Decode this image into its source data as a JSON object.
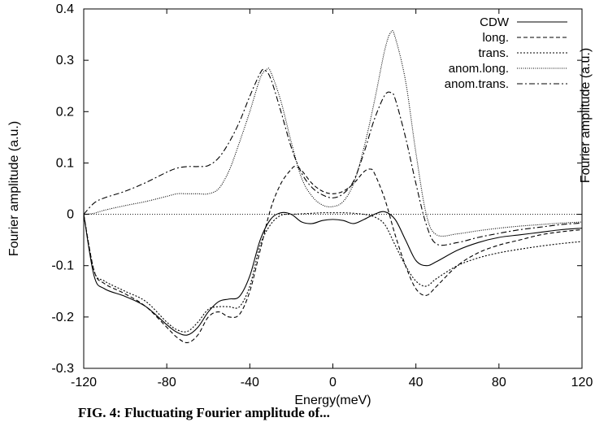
{
  "caption": "FIG. 4: Fluctuating Fourier amplitude of...",
  "chart_data": {
    "type": "line",
    "xlabel": "Energy(meV)",
    "ylabel": "Fourier amplitude (a.u.)",
    "ylabel_right": "Fourier amplitude (a.u.)",
    "xlim": [
      -120,
      120
    ],
    "ylim": [
      -0.3,
      0.4
    ],
    "xticks": [
      -120,
      -80,
      -40,
      0,
      40,
      80,
      120
    ],
    "yticks": [
      -0.3,
      -0.2,
      -0.1,
      0,
      0.1,
      0.2,
      0.3,
      0.4
    ],
    "xtick_labels": [
      "-120",
      "-80",
      "-40",
      "0",
      "40",
      "80",
      "120"
    ],
    "ytick_labels": [
      "-0.3",
      "-0.2",
      "-0.1",
      "0",
      "0.1",
      "0.2",
      "0.3",
      "0.4"
    ],
    "grid": false,
    "legend_position": "top-right",
    "series": [
      {
        "name": "CDW",
        "style": "solid",
        "x": [
          -120,
          -115,
          -110,
          -100,
          -90,
          -80,
          -75,
          -70,
          -65,
          -60,
          -55,
          -50,
          -45,
          -40,
          -35,
          -30,
          -25,
          -20,
          -15,
          -10,
          -5,
          0,
          5,
          10,
          15,
          20,
          25,
          30,
          35,
          40,
          45,
          50,
          60,
          70,
          80,
          90,
          100,
          110,
          120
        ],
        "y": [
          0.0,
          -0.12,
          -0.145,
          -0.16,
          -0.18,
          -0.215,
          -0.23,
          -0.235,
          -0.22,
          -0.19,
          -0.17,
          -0.165,
          -0.16,
          -0.12,
          -0.05,
          -0.01,
          0.003,
          0.0,
          -0.015,
          -0.018,
          -0.012,
          -0.01,
          -0.012,
          -0.018,
          -0.01,
          0.0,
          0.005,
          -0.01,
          -0.05,
          -0.09,
          -0.1,
          -0.092,
          -0.07,
          -0.055,
          -0.045,
          -0.04,
          -0.035,
          -0.03,
          -0.027
        ]
      },
      {
        "name": "long.",
        "style": "dashed",
        "x": [
          -120,
          -115,
          -110,
          -100,
          -90,
          -80,
          -75,
          -70,
          -65,
          -60,
          -55,
          -50,
          -45,
          -40,
          -35,
          -30,
          -25,
          -20,
          -18,
          -15,
          -10,
          -5,
          0,
          5,
          10,
          15,
          18,
          20,
          25,
          30,
          35,
          40,
          45,
          50,
          60,
          70,
          80,
          90,
          100,
          110,
          120
        ],
        "y": [
          0.0,
          -0.11,
          -0.135,
          -0.155,
          -0.18,
          -0.22,
          -0.24,
          -0.25,
          -0.235,
          -0.2,
          -0.19,
          -0.2,
          -0.195,
          -0.15,
          -0.07,
          0.01,
          0.06,
          0.088,
          0.093,
          0.085,
          0.06,
          0.045,
          0.04,
          0.045,
          0.06,
          0.083,
          0.088,
          0.08,
          0.03,
          -0.04,
          -0.1,
          -0.145,
          -0.158,
          -0.14,
          -0.1,
          -0.075,
          -0.06,
          -0.05,
          -0.04,
          -0.034,
          -0.03
        ]
      },
      {
        "name": "trans.",
        "style": "dotted",
        "x": [
          -120,
          -115,
          -110,
          -100,
          -90,
          -80,
          -75,
          -70,
          -65,
          -60,
          -55,
          -50,
          -45,
          -40,
          -35,
          -30,
          -25,
          -20,
          -15,
          -10,
          -5,
          0,
          5,
          10,
          15,
          20,
          25,
          30,
          35,
          40,
          45,
          50,
          60,
          70,
          80,
          90,
          100,
          110,
          120
        ],
        "y": [
          0.0,
          -0.11,
          -0.13,
          -0.15,
          -0.17,
          -0.21,
          -0.225,
          -0.228,
          -0.21,
          -0.185,
          -0.18,
          -0.18,
          -0.18,
          -0.14,
          -0.06,
          -0.02,
          -0.002,
          0.0,
          0.001,
          0.002,
          0.003,
          0.003,
          0.003,
          0.002,
          0.0,
          -0.005,
          -0.02,
          -0.06,
          -0.1,
          -0.13,
          -0.14,
          -0.125,
          -0.1,
          -0.085,
          -0.075,
          -0.068,
          -0.062,
          -0.057,
          -0.053
        ]
      },
      {
        "name": "anom.long.",
        "style": "finedot",
        "x": [
          -120,
          -115,
          -110,
          -100,
          -90,
          -80,
          -75,
          -70,
          -65,
          -60,
          -55,
          -50,
          -45,
          -40,
          -35,
          -32,
          -30,
          -25,
          -20,
          -15,
          -10,
          -5,
          0,
          5,
          10,
          15,
          20,
          25,
          28,
          30,
          35,
          40,
          45,
          50,
          60,
          70,
          80,
          90,
          100,
          110,
          120
        ],
        "y": [
          0.0,
          0.002,
          0.008,
          0.017,
          0.025,
          0.035,
          0.04,
          0.04,
          0.04,
          0.04,
          0.05,
          0.085,
          0.14,
          0.2,
          0.265,
          0.282,
          0.278,
          0.22,
          0.14,
          0.07,
          0.035,
          0.018,
          0.015,
          0.025,
          0.06,
          0.13,
          0.22,
          0.32,
          0.355,
          0.345,
          0.26,
          0.12,
          0.0,
          -0.04,
          -0.038,
          -0.032,
          -0.027,
          -0.023,
          -0.02,
          -0.017,
          -0.015
        ]
      },
      {
        "name": "anom.trans.",
        "style": "dashdot",
        "x": [
          -120,
          -115,
          -110,
          -100,
          -90,
          -80,
          -75,
          -70,
          -65,
          -60,
          -55,
          -50,
          -45,
          -40,
          -35,
          -33,
          -30,
          -25,
          -20,
          -15,
          -10,
          -5,
          0,
          5,
          10,
          15,
          20,
          25,
          28,
          30,
          35,
          40,
          45,
          50,
          60,
          70,
          80,
          90,
          100,
          110,
          120
        ],
        "y": [
          0.0,
          0.022,
          0.032,
          0.045,
          0.062,
          0.082,
          0.09,
          0.093,
          0.093,
          0.095,
          0.11,
          0.14,
          0.18,
          0.23,
          0.275,
          0.281,
          0.265,
          0.2,
          0.13,
          0.08,
          0.052,
          0.038,
          0.032,
          0.04,
          0.065,
          0.12,
          0.185,
          0.232,
          0.237,
          0.225,
          0.15,
          0.06,
          -0.02,
          -0.058,
          -0.055,
          -0.045,
          -0.037,
          -0.03,
          -0.025,
          -0.02,
          -0.017
        ]
      }
    ]
  }
}
